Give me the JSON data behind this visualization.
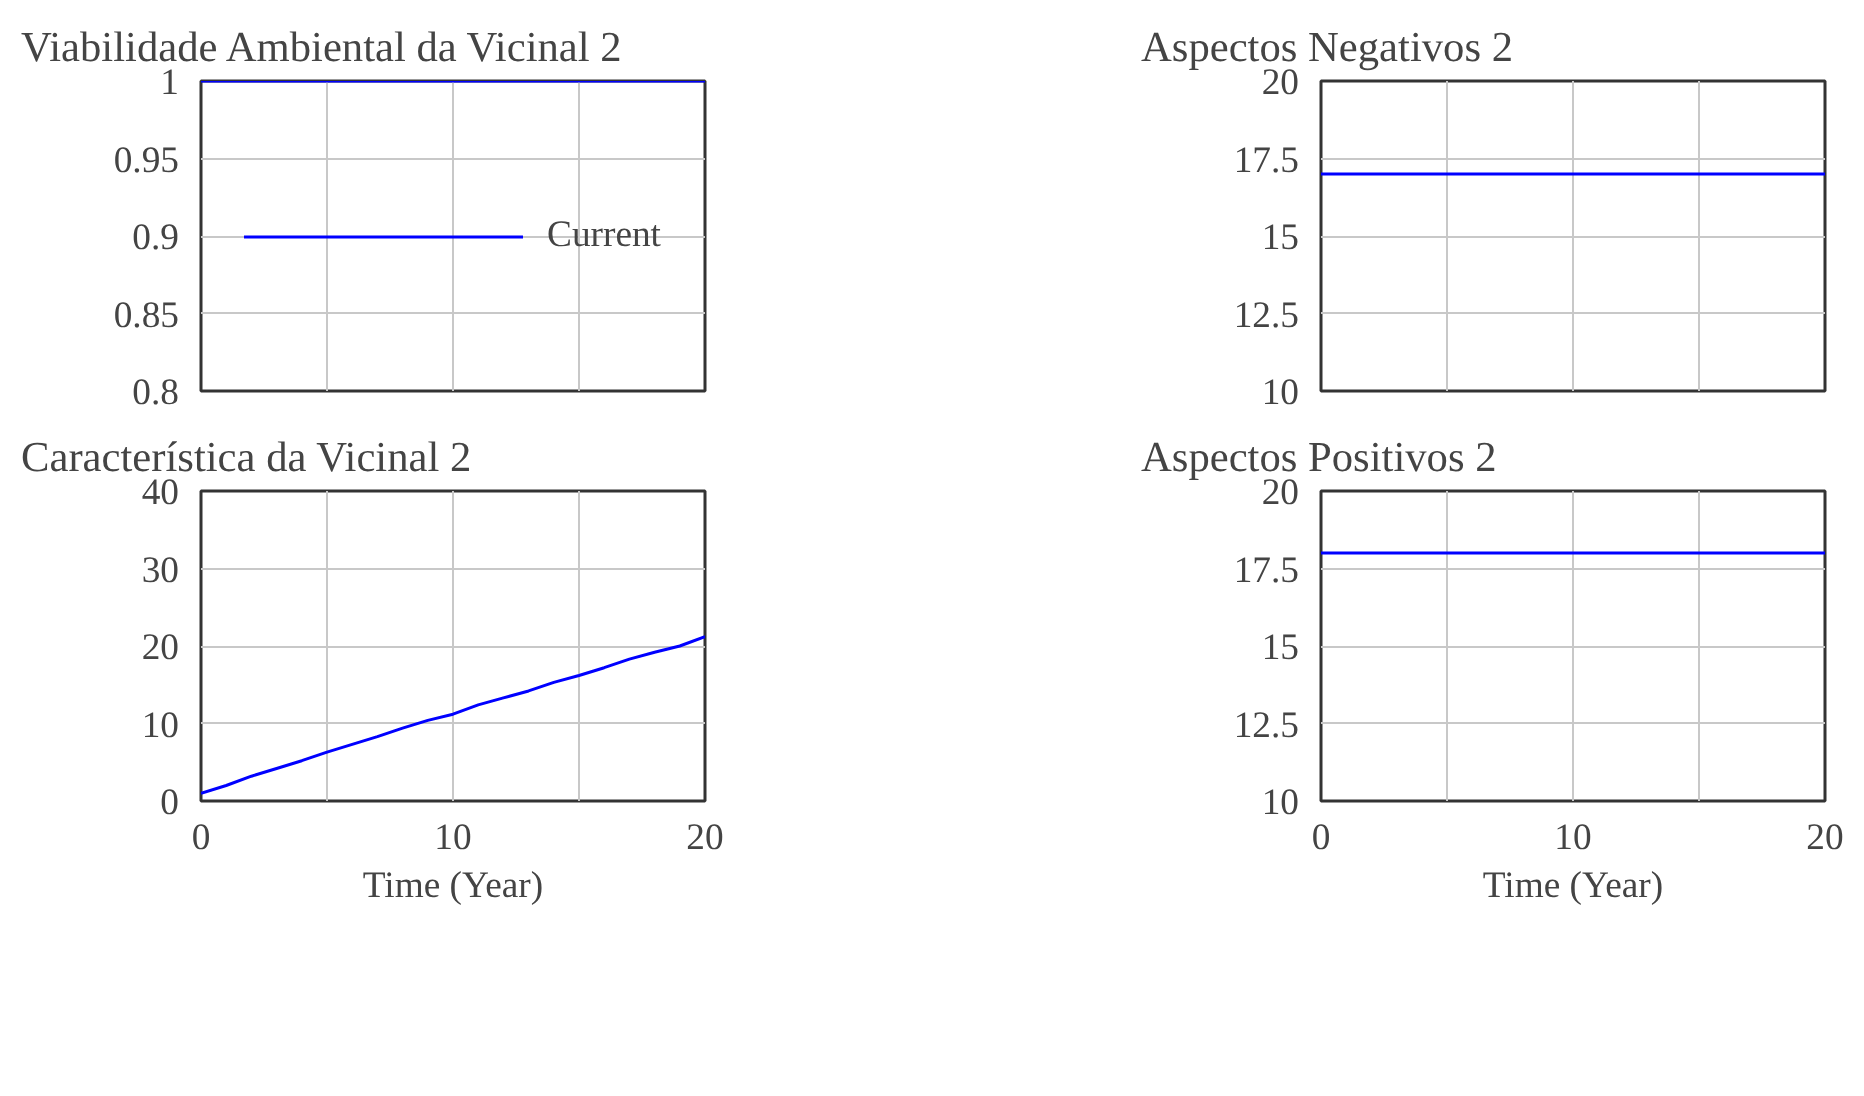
{
  "chart_data": [
    {
      "type": "line",
      "title": "Viabilidade Ambiental da Vicinal 2",
      "x": [
        0,
        20
      ],
      "series": [
        {
          "name": "Current",
          "color": "#0000ff",
          "values": [
            1,
            1
          ]
        }
      ],
      "xlim": [
        0,
        20
      ],
      "xticks": [
        {
          "value": 0,
          "label": null
        },
        {
          "value": 5,
          "label": null
        },
        {
          "value": 10,
          "label": null
        },
        {
          "value": 15,
          "label": null
        },
        {
          "value": 20,
          "label": null
        }
      ],
      "ylim": [
        0.8,
        1
      ],
      "yticks": [
        0.8,
        0.85,
        0.9,
        0.95,
        1
      ],
      "grid": true,
      "legend": "top",
      "tick_labels": "y"
    },
    {
      "type": "line",
      "title": "Aspectos Negativos 2",
      "x": [
        0,
        20
      ],
      "series": [
        {
          "color": "#0000ff",
          "values": [
            17,
            17
          ]
        }
      ],
      "xlim": [
        0,
        20
      ],
      "xticks": [
        {
          "value": 0,
          "label": null
        },
        {
          "value": 5,
          "label": null
        },
        {
          "value": 10,
          "label": null
        },
        {
          "value": 15,
          "label": null
        },
        {
          "value": 20,
          "label": null
        }
      ],
      "ylim": [
        10,
        20
      ],
      "yticks": [
        10,
        12.5,
        15,
        17.5,
        20
      ],
      "grid": true,
      "tick_labels": "y"
    },
    {
      "type": "line",
      "title": "Característica da Vicinal 2",
      "xlabel": "Time (Year)",
      "x": [
        0,
        1,
        2,
        3,
        4,
        5,
        6,
        7,
        8,
        9,
        10,
        11,
        12,
        13,
        14,
        15,
        16,
        17,
        18,
        19,
        20
      ],
      "series": [
        {
          "color": "#0000ff",
          "values": [
            1,
            2,
            3.2,
            4.2,
            5.2,
            6.3,
            7.3,
            8.3,
            9.4,
            10.4,
            11.2,
            12.4,
            13.3,
            14.2,
            15.3,
            16.2,
            17.2,
            18.3,
            19.2,
            20,
            21.2
          ]
        }
      ],
      "xlim": [
        0,
        20
      ],
      "xticks": [
        0,
        {
          "value": 5,
          "label": null
        },
        10,
        {
          "value": 15,
          "label": null
        },
        20
      ],
      "ylim": [
        0,
        40
      ],
      "yticks": [
        0,
        10,
        20,
        30,
        40
      ],
      "grid": true
    },
    {
      "type": "line",
      "title": "Aspectos Positivos 2",
      "xlabel": "Time (Year)",
      "x": [
        0,
        20
      ],
      "series": [
        {
          "color": "#0000ff",
          "values": [
            18,
            18
          ]
        }
      ],
      "xlim": [
        0,
        20
      ],
      "xticks": [
        0,
        {
          "value": 5,
          "label": null
        },
        10,
        {
          "value": 15,
          "label": null
        },
        20
      ],
      "ylim": [
        10,
        20
      ],
      "yticks": [
        10,
        12.5,
        15,
        17.5,
        20
      ],
      "grid": true
    }
  ]
}
